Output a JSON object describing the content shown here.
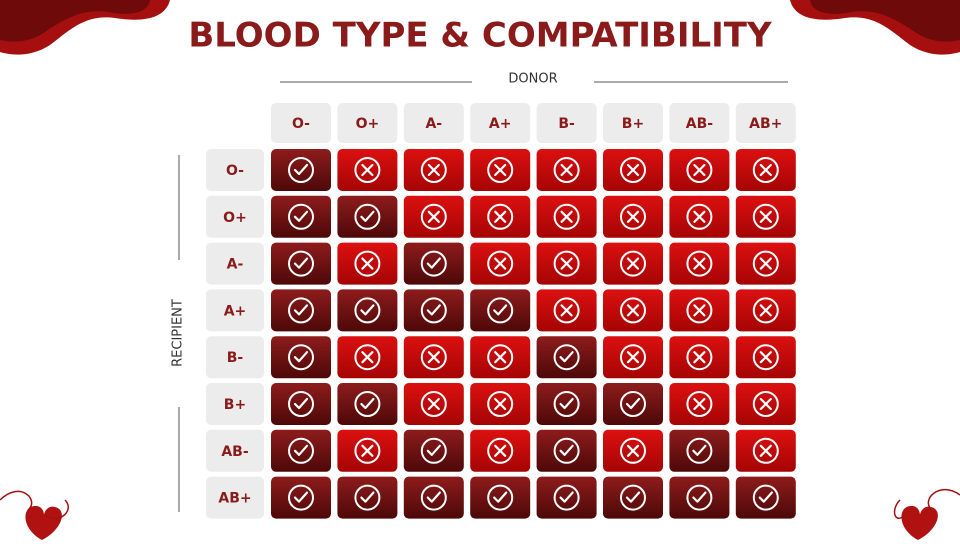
{
  "title": "BLOOD TYPE & COMPATIBILITY",
  "donor_label": "DONOR",
  "recipient_label": "RECIPIENT",
  "donors": [
    "O-",
    "O+",
    "A-",
    "A+",
    "B-",
    "B+",
    "AB-",
    "AB+"
  ],
  "recipients": [
    "O-",
    "O+",
    "A-",
    "A+",
    "B-",
    "B+",
    "AB-",
    "AB+"
  ],
  "compatible": [
    [
      true,
      false,
      false,
      false,
      false,
      false,
      false,
      false
    ],
    [
      true,
      true,
      false,
      false,
      false,
      false,
      false,
      false
    ],
    [
      true,
      false,
      true,
      false,
      false,
      false,
      false,
      false
    ],
    [
      true,
      true,
      true,
      true,
      false,
      false,
      false,
      false
    ],
    [
      true,
      false,
      false,
      false,
      true,
      false,
      false,
      false
    ],
    [
      true,
      true,
      false,
      false,
      true,
      true,
      false,
      false
    ],
    [
      true,
      false,
      true,
      false,
      true,
      false,
      true,
      false
    ],
    [
      true,
      true,
      true,
      true,
      true,
      true,
      true,
      true
    ]
  ]
}
